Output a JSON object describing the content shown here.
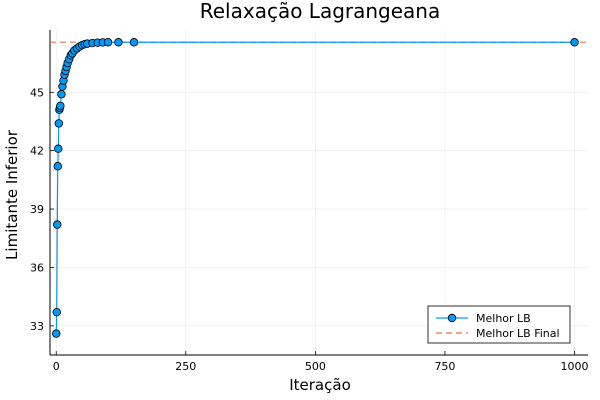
{
  "chart_data": {
    "type": "line",
    "title": "Relaxação Lagrangeana",
    "xlabel": "Iteração",
    "ylabel": "Limitante Inferior",
    "xlim": [
      -12,
      1026
    ],
    "ylim": [
      31.5,
      48.2
    ],
    "xticks": [
      0,
      250,
      500,
      750,
      1000
    ],
    "xtick_labels": [
      "0",
      "250",
      "500",
      "750",
      "1000"
    ],
    "yticks": [
      33,
      36,
      39,
      42,
      45
    ],
    "ytick_labels": [
      "33",
      "36",
      "39",
      "42",
      "45"
    ],
    "grid": true,
    "legend_position": "bottom-right",
    "series": [
      {
        "name": "Melhor LB",
        "color": "#009af9",
        "marker": "circle",
        "x": [
          0,
          1,
          2,
          3,
          4,
          5,
          6,
          7,
          8,
          10,
          12,
          14,
          16,
          18,
          20,
          22,
          25,
          28,
          31,
          35,
          40,
          45,
          50,
          55,
          60,
          70,
          80,
          90,
          100,
          120,
          150,
          1000
        ],
        "values": [
          32.6,
          33.7,
          38.2,
          41.2,
          42.1,
          43.4,
          44.1,
          44.2,
          44.3,
          44.9,
          45.3,
          45.6,
          45.9,
          46.1,
          46.3,
          46.5,
          46.7,
          46.9,
          47.0,
          47.15,
          47.25,
          47.35,
          47.42,
          47.47,
          47.5,
          47.53,
          47.55,
          47.56,
          47.57,
          47.57,
          47.57,
          47.57
        ]
      },
      {
        "name": "Melhor LB Final",
        "color": "#e26f46",
        "style": "dashed",
        "x": [
          -12,
          1026
        ],
        "values": [
          47.57,
          47.57
        ]
      }
    ]
  }
}
